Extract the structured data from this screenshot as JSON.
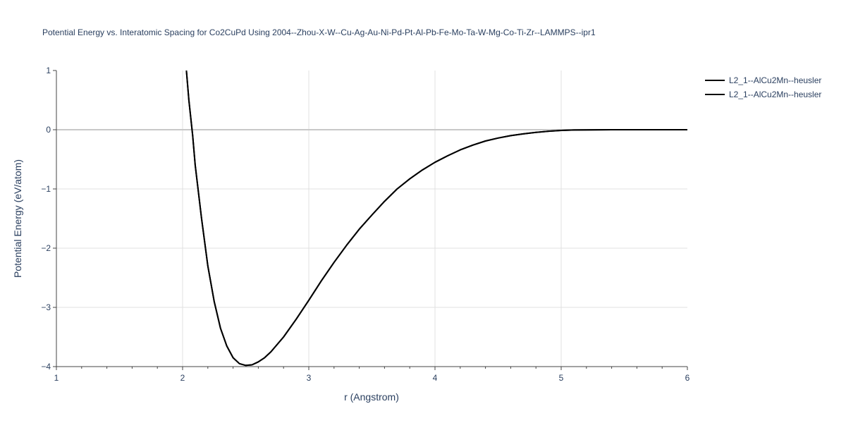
{
  "chart_data": {
    "type": "line",
    "title": "Potential Energy vs. Interatomic Spacing for Co2CuPd Using 2004--Zhou-X-W--Cu-Ag-Au-Ni-Pd-Pt-Al-Pb-Fe-Mo-Ta-W-Mg-Co-Ti-Zr--LAMMPS--ipr1",
    "xlabel": "r (Angstrom)",
    "ylabel": "Potential Energy (eV/atom)",
    "xlim": [
      1,
      6
    ],
    "ylim": [
      -4,
      1
    ],
    "x_ticks": [
      "1",
      "2",
      "3",
      "4",
      "5",
      "6"
    ],
    "y_ticks": [
      "1",
      "0",
      "−1",
      "−2",
      "−3",
      "−4"
    ],
    "grid": true,
    "legend_position": "top-right",
    "line_color": "#000000",
    "series": [
      {
        "name": "L2_1--AlCu2Mn--heusler",
        "x": [
          2.03,
          2.05,
          2.08,
          2.1,
          2.15,
          2.2,
          2.25,
          2.3,
          2.35,
          2.4,
          2.45,
          2.5,
          2.55,
          2.6,
          2.65,
          2.7,
          2.8,
          2.9,
          3.0,
          3.1,
          3.2,
          3.3,
          3.4,
          3.5,
          3.6,
          3.7,
          3.8,
          3.9,
          4.0,
          4.1,
          4.2,
          4.3,
          4.4,
          4.5,
          4.6,
          4.7,
          4.8,
          4.9,
          5.0,
          5.1,
          5.2,
          5.4,
          5.6,
          5.8,
          6.0
        ],
        "y": [
          1.0,
          0.5,
          -0.1,
          -0.6,
          -1.5,
          -2.3,
          -2.9,
          -3.35,
          -3.65,
          -3.85,
          -3.95,
          -3.98,
          -3.97,
          -3.92,
          -3.85,
          -3.75,
          -3.5,
          -3.2,
          -2.88,
          -2.55,
          -2.24,
          -1.95,
          -1.68,
          -1.44,
          -1.21,
          -1.0,
          -0.83,
          -0.68,
          -0.55,
          -0.44,
          -0.34,
          -0.26,
          -0.19,
          -0.14,
          -0.1,
          -0.07,
          -0.045,
          -0.025,
          -0.012,
          -0.005,
          -0.002,
          0.0,
          0.0,
          0.0,
          0.0
        ]
      },
      {
        "name": "L2_1--AlCu2Mn--heusler",
        "x": [
          2.03,
          2.05,
          2.08,
          2.1,
          2.15,
          2.2,
          2.25,
          2.3,
          2.35,
          2.4,
          2.45,
          2.5,
          2.55,
          2.6,
          2.65,
          2.7,
          2.8,
          2.9,
          3.0,
          3.1,
          3.2,
          3.3,
          3.4,
          3.5,
          3.6,
          3.7,
          3.8,
          3.9,
          4.0,
          4.1,
          4.2,
          4.3,
          4.4,
          4.5,
          4.6,
          4.7,
          4.8,
          4.9,
          5.0,
          5.1,
          5.2,
          5.4,
          5.6,
          5.8,
          6.0
        ],
        "y": [
          1.0,
          0.5,
          -0.1,
          -0.6,
          -1.5,
          -2.3,
          -2.9,
          -3.35,
          -3.65,
          -3.85,
          -3.95,
          -3.98,
          -3.97,
          -3.92,
          -3.85,
          -3.75,
          -3.5,
          -3.2,
          -2.88,
          -2.55,
          -2.24,
          -1.95,
          -1.68,
          -1.44,
          -1.21,
          -1.0,
          -0.83,
          -0.68,
          -0.55,
          -0.44,
          -0.34,
          -0.26,
          -0.19,
          -0.14,
          -0.1,
          -0.07,
          -0.045,
          -0.025,
          -0.012,
          -0.005,
          -0.002,
          0.0,
          0.0,
          0.0,
          0.0
        ]
      }
    ]
  }
}
